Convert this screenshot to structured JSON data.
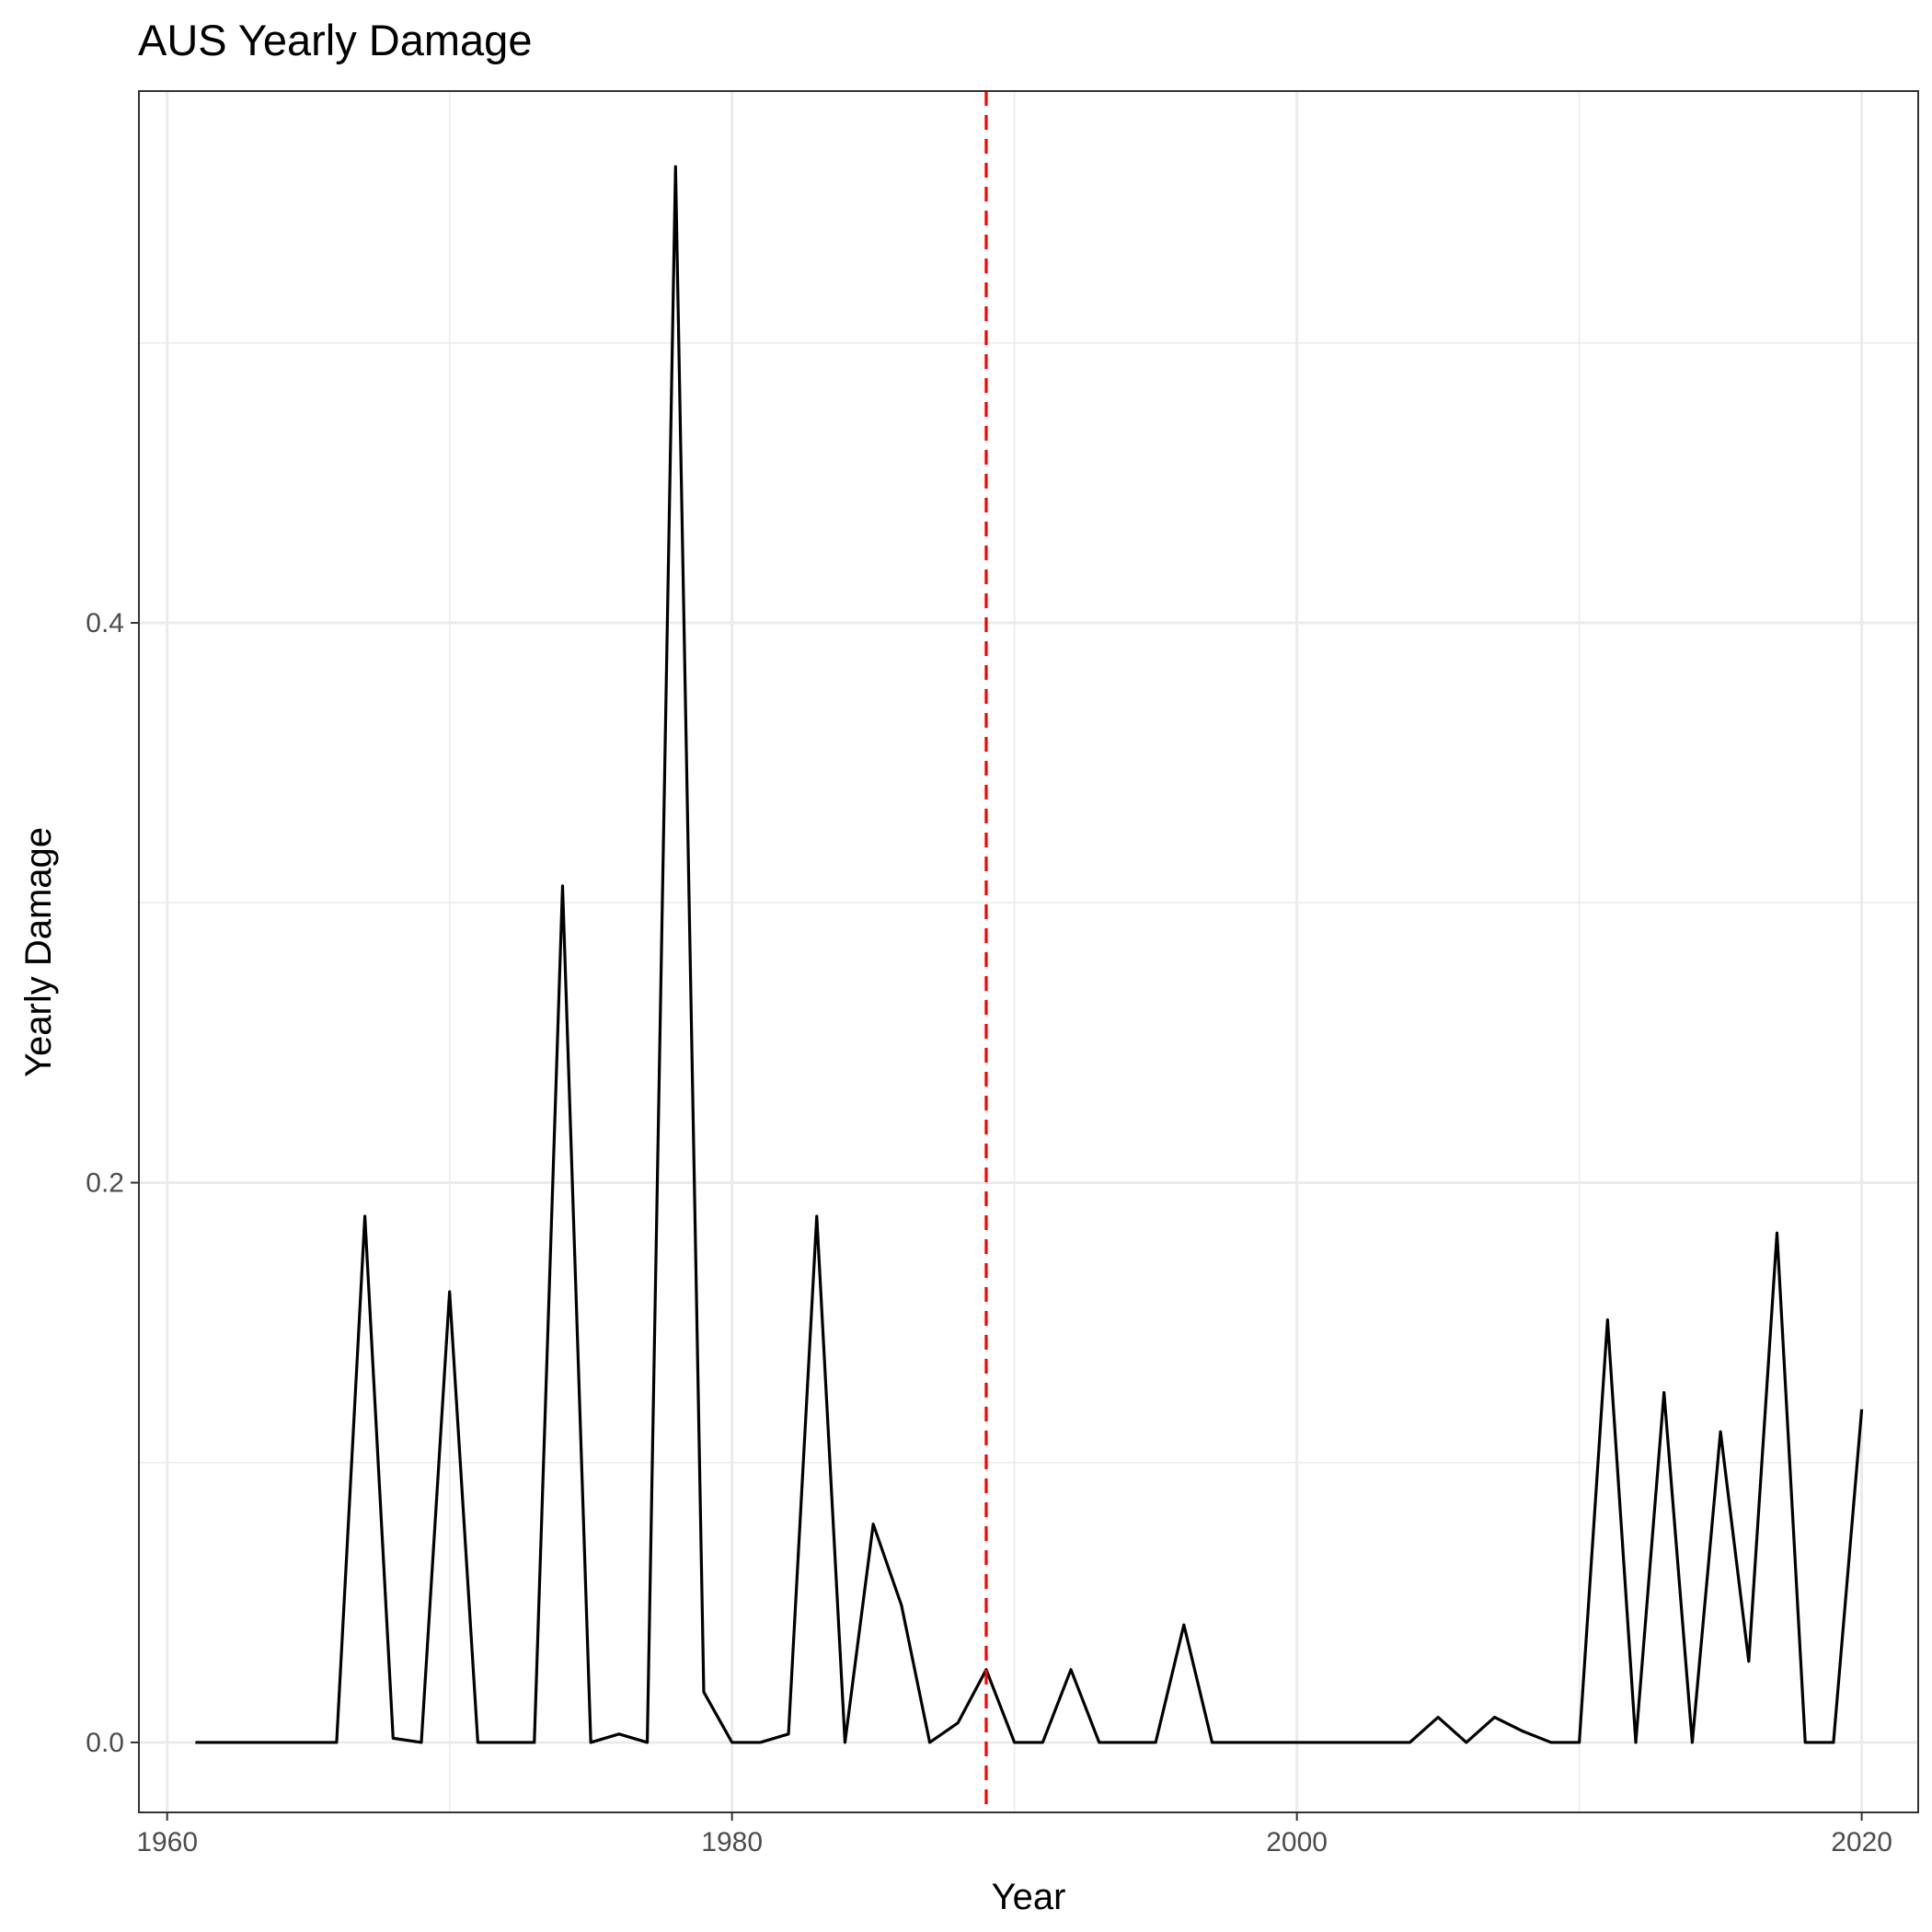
{
  "chart_data": {
    "type": "line",
    "title": "AUS Yearly Damage",
    "xlabel": "Year",
    "ylabel": "Yearly Damage",
    "xlim": [
      1959,
      2022
    ],
    "ylim": [
      -0.025,
      0.59
    ],
    "x_ticks": [
      1960,
      1980,
      2000,
      2020
    ],
    "x_tick_labels": [
      "1960",
      "1980",
      "2000",
      "2020"
    ],
    "x_minor_ticks": [
      1970,
      1990,
      2010
    ],
    "y_ticks": [
      0.0,
      0.2,
      0.4
    ],
    "y_tick_labels": [
      "0.0",
      "0.2",
      "0.4"
    ],
    "y_minor_ticks": [
      0.1,
      0.3,
      0.5
    ],
    "grid": true,
    "legend": "none",
    "series": [
      {
        "color": "#000000",
        "x": [
          1961,
          1962,
          1963,
          1964,
          1965,
          1966,
          1967,
          1968,
          1969,
          1970,
          1971,
          1972,
          1973,
          1974,
          1975,
          1976,
          1977,
          1978,
          1979,
          1980,
          1981,
          1982,
          1983,
          1984,
          1985,
          1986,
          1987,
          1988,
          1989,
          1990,
          1991,
          1992,
          1993,
          1994,
          1995,
          1996,
          1997,
          1998,
          1999,
          2000,
          2001,
          2002,
          2003,
          2004,
          2005,
          2006,
          2007,
          2008,
          2009,
          2010,
          2011,
          2012,
          2013,
          2014,
          2015,
          2016,
          2017,
          2018,
          2019,
          2020
        ],
        "y": [
          0.0,
          0.0,
          0.0,
          0.0,
          0.0,
          0.0,
          0.188,
          0.0015,
          0.0,
          0.161,
          0.0,
          0.0,
          0.0,
          0.306,
          0.0,
          0.003,
          0.0,
          0.563,
          0.018,
          0.0,
          0.0,
          0.003,
          0.188,
          0.0,
          0.078,
          0.049,
          0.0,
          0.007,
          0.026,
          0.0,
          0.0,
          0.026,
          0.0,
          0.0,
          0.0,
          0.042,
          0.0,
          0.0,
          0.0,
          0.0,
          0.0,
          0.0,
          0.0,
          0.0,
          0.009,
          0.0,
          0.009,
          0.004,
          0.0,
          0.0,
          0.151,
          0.0,
          0.125,
          0.0,
          0.111,
          0.029,
          0.182,
          0.0,
          0.0,
          0.119
        ]
      }
    ],
    "annotations": [
      {
        "type": "vline",
        "x": 1989,
        "color": "#ff0000",
        "style": "dashed"
      }
    ]
  }
}
